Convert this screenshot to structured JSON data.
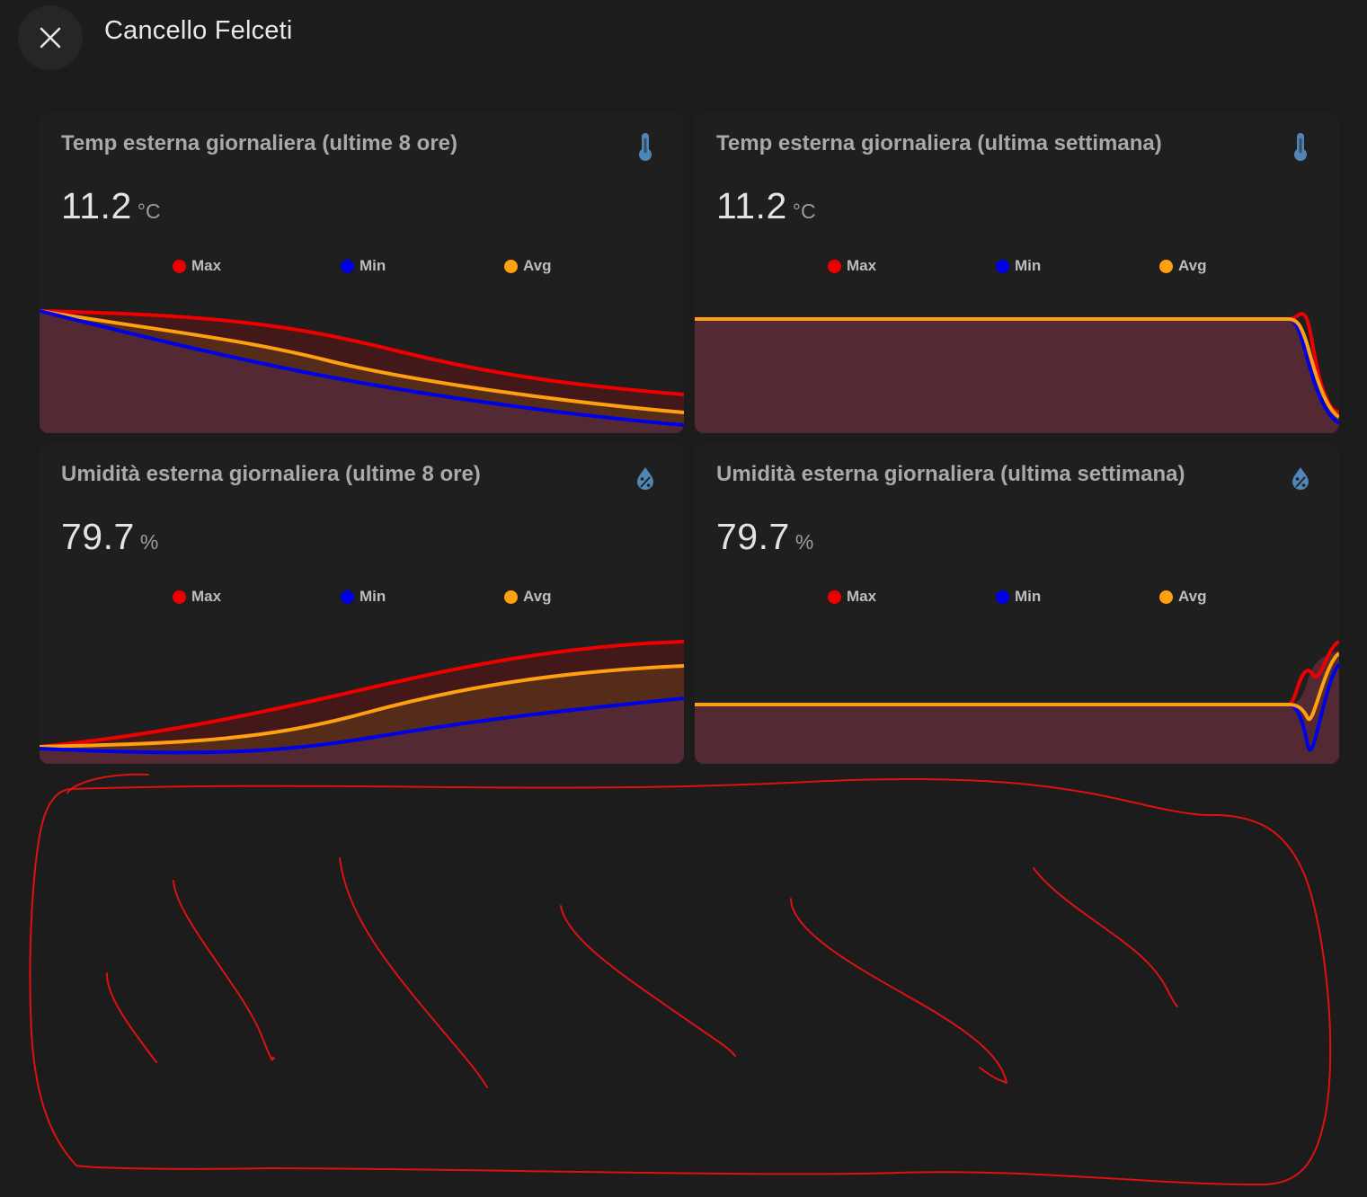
{
  "header": {
    "title": "Cancello Felceti",
    "close_icon": "close-icon"
  },
  "colors": {
    "max": "#ee0000",
    "min": "#0000e8",
    "avg": "#ffa010",
    "icon": "#4f86b5",
    "area_base": "#532a33"
  },
  "legend": [
    "Max",
    "Min",
    "Avg"
  ],
  "cards": [
    {
      "title": "Temp esterna giornaliera (ultime 8 ore)",
      "icon": "thermometer-icon",
      "value": "11.2",
      "unit": "°C"
    },
    {
      "title": "Temp esterna giornaliera (ultima settimana)",
      "icon": "thermometer-icon",
      "value": "11.2",
      "unit": "°C"
    },
    {
      "title": "Umidità esterna giornaliera (ultime 8 ore)",
      "icon": "water-percent-icon",
      "value": "79.7",
      "unit": "%"
    },
    {
      "title": "Umidità esterna giornaliera (ultima settimana)",
      "icon": "water-percent-icon",
      "value": "79.7",
      "unit": "%"
    }
  ]
}
